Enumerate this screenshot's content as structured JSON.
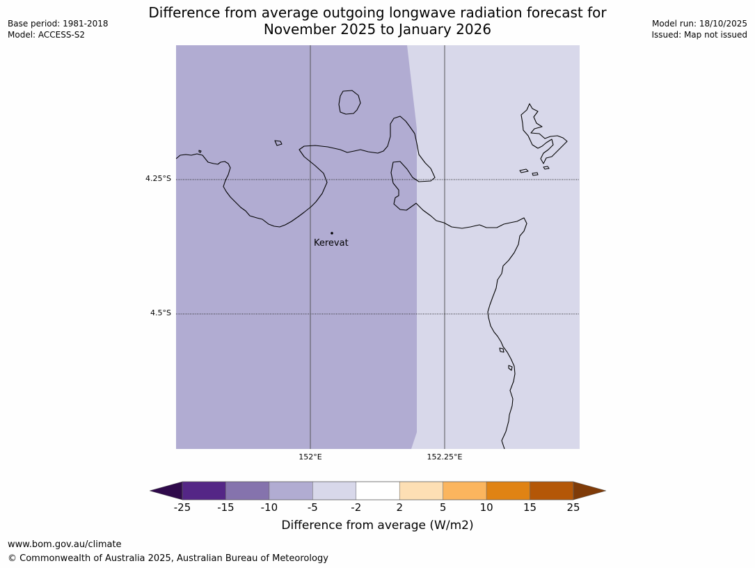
{
  "header": {
    "title_line1": "Difference from average outgoing longwave radiation forecast for",
    "title_line2": "November 2025 to January 2026",
    "base_period": "Base period: 1981-2018",
    "model": "Model: ACCESS-S2",
    "model_run": "Model run: 18/10/2025",
    "issued": "Issued: Map not issued"
  },
  "map": {
    "lat_labels": [
      "4.25°S",
      "4.5°S"
    ],
    "lon_labels": [
      "152°E",
      "152.25°E"
    ],
    "place": {
      "name": "Kerevat"
    },
    "regions": [
      {
        "category": "-10 to -5",
        "color": "#b1acd2"
      },
      {
        "category": "-5 to -2",
        "color": "#d8d8ea"
      }
    ],
    "coastline_color": "#000000"
  },
  "colorbar": {
    "ticks": [
      "-25",
      "-15",
      "-10",
      "-5",
      "-2",
      "2",
      "5",
      "10",
      "15",
      "25"
    ],
    "colors": [
      "#542686",
      "#8573ad",
      "#b1acd2",
      "#d8d8ea",
      "#ffffff",
      "#fddfb4",
      "#fbb55e",
      "#e08314",
      "#b45707"
    ],
    "extend_low_color": "#2f0a4b",
    "extend_high_color": "#7f3b08",
    "label": "Difference from average (W/m2)"
  },
  "footer": {
    "url": "www.bom.gov.au/climate",
    "copyright": "© Commonwealth of Australia 2025, Australian Bureau of Meteorology"
  }
}
